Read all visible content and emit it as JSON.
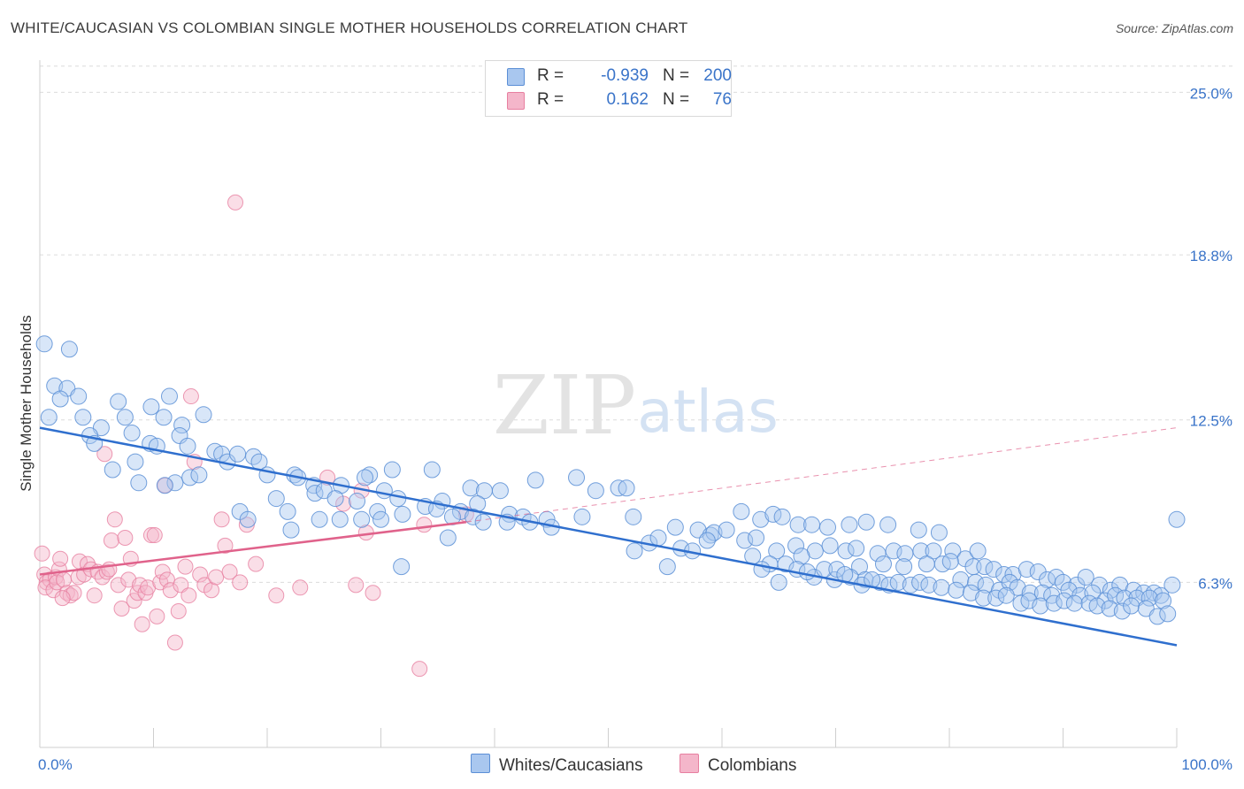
{
  "title": "WHITE/CAUCASIAN VS COLOMBIAN SINGLE MOTHER HOUSEHOLDS CORRELATION CHART",
  "source": "Source: ZipAtlas.com",
  "watermark": {
    "zip": "ZIP",
    "atlas": "atlas"
  },
  "legend_top": {
    "r_label": "R =",
    "n_label": "N =",
    "rows": [
      {
        "name": "Whites/Caucasians",
        "r": "-0.939",
        "n": "200",
        "color": "#a9c7ef"
      },
      {
        "name": "Colombians",
        "r": "0.162",
        "n": "76",
        "color": "#f4b6ca"
      }
    ]
  },
  "legend_bottom": [
    "Whites/Caucasians",
    "Colombians"
  ],
  "colors": {
    "blue_fill": "#a9c7ef",
    "blue_stroke": "#5b8fd6",
    "blue_line": "#2f6fce",
    "pink_fill": "#f4b6ca",
    "pink_stroke": "#e77fa0",
    "pink_line": "#e0628b",
    "accent_text": "#3a74c9"
  },
  "chart_data": {
    "type": "scatter",
    "title": "WHITE/CAUCASIAN VS COLOMBIAN SINGLE MOTHER HOUSEHOLDS CORRELATION CHART",
    "xlabel": "",
    "ylabel": "Single Mother Households",
    "xlim": [
      0,
      100
    ],
    "ylim": [
      0,
      26.5
    ],
    "x_tick_labels": [
      "0.0%",
      "100.0%"
    ],
    "y_ticks": [
      6.3,
      12.5,
      18.8,
      25.0
    ],
    "y_tick_labels": [
      "6.3%",
      "12.5%",
      "18.8%",
      "25.0%"
    ],
    "grid": true,
    "legend": "top-center",
    "series": [
      {
        "name": "Whites/Caucasians",
        "r": -0.939,
        "n": 200,
        "trend": {
          "x": [
            0,
            100
          ],
          "y": [
            12.2,
            3.9
          ]
        },
        "points": [
          [
            0.4,
            15.4
          ],
          [
            2.6,
            15.2
          ],
          [
            1.3,
            13.8
          ],
          [
            2.4,
            13.7
          ],
          [
            1.8,
            13.3
          ],
          [
            3.4,
            13.4
          ],
          [
            0.8,
            12.6
          ],
          [
            3.8,
            12.6
          ],
          [
            6.9,
            13.2
          ],
          [
            7.5,
            12.6
          ],
          [
            5.4,
            12.2
          ],
          [
            8.1,
            12.0
          ],
          [
            9.8,
            13.0
          ],
          [
            10.9,
            12.6
          ],
          [
            11.4,
            13.4
          ],
          [
            12.5,
            12.3
          ],
          [
            14.4,
            12.7
          ],
          [
            12.3,
            11.9
          ],
          [
            4.4,
            11.9
          ],
          [
            4.8,
            11.6
          ],
          [
            9.7,
            11.6
          ],
          [
            10.3,
            11.5
          ],
          [
            13.0,
            11.5
          ],
          [
            15.4,
            11.3
          ],
          [
            16.0,
            11.2
          ],
          [
            16.5,
            10.9
          ],
          [
            17.4,
            11.2
          ],
          [
            18.8,
            11.1
          ],
          [
            19.3,
            10.9
          ],
          [
            8.4,
            10.9
          ],
          [
            6.4,
            10.6
          ],
          [
            11.9,
            10.1
          ],
          [
            13.2,
            10.3
          ],
          [
            8.7,
            10.1
          ],
          [
            11.0,
            10.0
          ],
          [
            14.0,
            10.4
          ],
          [
            20.0,
            10.4
          ],
          [
            22.4,
            10.4
          ],
          [
            22.7,
            10.3
          ],
          [
            24.1,
            10.0
          ],
          [
            24.2,
            9.7
          ],
          [
            25.0,
            9.8
          ],
          [
            26.5,
            10.0
          ],
          [
            29.0,
            10.4
          ],
          [
            31.0,
            10.6
          ],
          [
            30.3,
            9.8
          ],
          [
            28.6,
            10.3
          ],
          [
            34.5,
            10.6
          ],
          [
            37.9,
            9.9
          ],
          [
            39.1,
            9.8
          ],
          [
            40.5,
            9.8
          ],
          [
            43.6,
            10.2
          ],
          [
            47.2,
            10.3
          ],
          [
            48.9,
            9.8
          ],
          [
            50.9,
            9.9
          ],
          [
            51.6,
            9.9
          ],
          [
            31.5,
            9.5
          ],
          [
            33.9,
            9.2
          ],
          [
            35.4,
            9.4
          ],
          [
            38.5,
            9.3
          ],
          [
            34.9,
            9.1
          ],
          [
            37.0,
            9.0
          ],
          [
            36.3,
            8.8
          ],
          [
            38.1,
            8.8
          ],
          [
            41.3,
            8.9
          ],
          [
            42.5,
            8.8
          ],
          [
            43.1,
            8.6
          ],
          [
            39.0,
            8.6
          ],
          [
            41.1,
            8.6
          ],
          [
            44.6,
            8.7
          ],
          [
            45.0,
            8.4
          ],
          [
            47.7,
            8.8
          ],
          [
            52.2,
            8.8
          ],
          [
            55.9,
            8.4
          ],
          [
            57.9,
            8.3
          ],
          [
            59.0,
            8.1
          ],
          [
            59.3,
            8.2
          ],
          [
            60.4,
            8.3
          ],
          [
            61.7,
            9.0
          ],
          [
            63.4,
            8.7
          ],
          [
            64.5,
            8.9
          ],
          [
            65.3,
            8.8
          ],
          [
            66.7,
            8.5
          ],
          [
            67.9,
            8.5
          ],
          [
            69.3,
            8.4
          ],
          [
            71.2,
            8.5
          ],
          [
            72.7,
            8.6
          ],
          [
            74.6,
            8.5
          ],
          [
            77.3,
            8.3
          ],
          [
            79.1,
            8.2
          ],
          [
            17.6,
            9.0
          ],
          [
            18.3,
            8.7
          ],
          [
            20.8,
            9.5
          ],
          [
            22.1,
            8.3
          ],
          [
            26.0,
            9.5
          ],
          [
            27.9,
            9.4
          ],
          [
            29.7,
            9.0
          ],
          [
            30.0,
            8.7
          ],
          [
            31.9,
            8.9
          ],
          [
            28.3,
            8.7
          ],
          [
            26.4,
            8.7
          ],
          [
            21.8,
            9.0
          ],
          [
            24.6,
            8.7
          ],
          [
            35.9,
            8.0
          ],
          [
            52.3,
            7.5
          ],
          [
            53.6,
            7.8
          ],
          [
            54.4,
            8.0
          ],
          [
            56.4,
            7.6
          ],
          [
            57.4,
            7.5
          ],
          [
            58.7,
            7.9
          ],
          [
            62.0,
            7.9
          ],
          [
            63.0,
            8.0
          ],
          [
            64.8,
            7.5
          ],
          [
            66.5,
            7.7
          ],
          [
            68.2,
            7.5
          ],
          [
            69.5,
            7.7
          ],
          [
            70.9,
            7.5
          ],
          [
            71.8,
            7.6
          ],
          [
            73.7,
            7.4
          ],
          [
            75.1,
            7.5
          ],
          [
            76.1,
            7.4
          ],
          [
            77.5,
            7.5
          ],
          [
            78.6,
            7.5
          ],
          [
            80.3,
            7.5
          ],
          [
            81.4,
            7.2
          ],
          [
            82.5,
            7.5
          ],
          [
            55.2,
            6.9
          ],
          [
            62.7,
            7.3
          ],
          [
            67.0,
            7.3
          ],
          [
            72.1,
            6.9
          ],
          [
            74.2,
            7.0
          ],
          [
            76.0,
            6.9
          ],
          [
            78.0,
            7.0
          ],
          [
            79.4,
            7.0
          ],
          [
            80.1,
            7.1
          ],
          [
            82.1,
            6.9
          ],
          [
            83.1,
            6.9
          ],
          [
            83.9,
            6.8
          ],
          [
            84.8,
            6.6
          ],
          [
            85.6,
            6.6
          ],
          [
            86.8,
            6.8
          ],
          [
            87.8,
            6.7
          ],
          [
            88.6,
            6.4
          ],
          [
            89.4,
            6.5
          ],
          [
            90.0,
            6.3
          ],
          [
            91.2,
            6.2
          ],
          [
            92.0,
            6.5
          ],
          [
            93.2,
            6.2
          ],
          [
            94.2,
            6.0
          ],
          [
            95.0,
            6.2
          ],
          [
            96.2,
            6.0
          ],
          [
            97.1,
            5.9
          ],
          [
            98.0,
            5.9
          ],
          [
            98.6,
            5.8
          ],
          [
            99.6,
            6.2
          ],
          [
            100.0,
            8.7
          ],
          [
            81.0,
            6.4
          ],
          [
            82.3,
            6.3
          ],
          [
            83.2,
            6.2
          ],
          [
            84.4,
            6.0
          ],
          [
            85.3,
            6.3
          ],
          [
            86.0,
            6.1
          ],
          [
            87.1,
            5.9
          ],
          [
            88.2,
            5.9
          ],
          [
            89.0,
            5.8
          ],
          [
            90.5,
            6.0
          ],
          [
            91.5,
            5.8
          ],
          [
            92.6,
            5.9
          ],
          [
            93.7,
            5.6
          ],
          [
            94.6,
            5.8
          ],
          [
            95.4,
            5.7
          ],
          [
            96.5,
            5.7
          ],
          [
            97.6,
            5.7
          ],
          [
            98.8,
            5.6
          ],
          [
            68.1,
            6.5
          ],
          [
            69.9,
            6.4
          ],
          [
            71.3,
            6.5
          ],
          [
            72.6,
            6.4
          ],
          [
            73.9,
            6.3
          ],
          [
            74.7,
            6.2
          ],
          [
            75.5,
            6.3
          ],
          [
            76.6,
            6.2
          ],
          [
            77.4,
            6.3
          ],
          [
            78.2,
            6.2
          ],
          [
            79.3,
            6.1
          ],
          [
            80.6,
            6.0
          ],
          [
            81.9,
            5.9
          ],
          [
            83.0,
            5.7
          ],
          [
            84.1,
            5.7
          ],
          [
            85.0,
            5.8
          ],
          [
            86.3,
            5.5
          ],
          [
            87.0,
            5.6
          ],
          [
            88.0,
            5.4
          ],
          [
            89.2,
            5.5
          ],
          [
            90.1,
            5.6
          ],
          [
            91.0,
            5.5
          ],
          [
            92.3,
            5.5
          ],
          [
            93.0,
            5.4
          ],
          [
            94.1,
            5.3
          ],
          [
            95.2,
            5.2
          ],
          [
            96.0,
            5.4
          ],
          [
            97.3,
            5.3
          ],
          [
            98.3,
            5.0
          ],
          [
            99.2,
            5.1
          ],
          [
            64.2,
            7.0
          ],
          [
            65.6,
            7.0
          ],
          [
            66.6,
            6.8
          ],
          [
            67.5,
            6.7
          ],
          [
            31.8,
            6.9
          ],
          [
            69.0,
            6.8
          ],
          [
            70.1,
            6.8
          ],
          [
            70.8,
            6.6
          ],
          [
            72.3,
            6.2
          ],
          [
            73.2,
            6.4
          ],
          [
            65.0,
            6.3
          ],
          [
            63.5,
            6.8
          ]
        ]
      },
      {
        "name": "Colombians",
        "r": 0.162,
        "n": 76,
        "trend": {
          "x": [
            0,
            37.5
          ],
          "y": [
            6.6,
            8.6
          ]
        },
        "trend_dashed": {
          "x": [
            37.5,
            100
          ],
          "y": [
            8.6,
            12.2
          ]
        },
        "points": [
          [
            0.2,
            7.4
          ],
          [
            0.4,
            6.6
          ],
          [
            0.6,
            6.3
          ],
          [
            0.9,
            6.4
          ],
          [
            0.5,
            6.1
          ],
          [
            1.2,
            6.0
          ],
          [
            1.4,
            6.5
          ],
          [
            1.7,
            6.8
          ],
          [
            1.5,
            6.3
          ],
          [
            2.1,
            6.4
          ],
          [
            2.4,
            5.9
          ],
          [
            2.7,
            5.8
          ],
          [
            3.0,
            5.9
          ],
          [
            2.0,
            5.7
          ],
          [
            1.8,
            7.2
          ],
          [
            3.4,
            6.5
          ],
          [
            3.5,
            7.1
          ],
          [
            3.9,
            6.6
          ],
          [
            4.2,
            7.0
          ],
          [
            4.5,
            6.8
          ],
          [
            4.8,
            5.8
          ],
          [
            5.1,
            6.7
          ],
          [
            5.5,
            6.5
          ],
          [
            5.9,
            6.7
          ],
          [
            6.1,
            6.8
          ],
          [
            6.3,
            7.9
          ],
          [
            6.6,
            8.7
          ],
          [
            6.9,
            6.2
          ],
          [
            7.2,
            5.3
          ],
          [
            7.5,
            8.0
          ],
          [
            7.8,
            6.4
          ],
          [
            8.0,
            7.2
          ],
          [
            8.3,
            5.6
          ],
          [
            8.6,
            5.9
          ],
          [
            8.8,
            6.2
          ],
          [
            9.0,
            4.7
          ],
          [
            9.3,
            5.9
          ],
          [
            9.5,
            6.1
          ],
          [
            9.8,
            8.1
          ],
          [
            10.1,
            8.1
          ],
          [
            10.3,
            5.0
          ],
          [
            10.6,
            6.3
          ],
          [
            10.8,
            6.7
          ],
          [
            11.2,
            6.4
          ],
          [
            11.5,
            6.0
          ],
          [
            11.9,
            4.0
          ],
          [
            12.2,
            5.2
          ],
          [
            12.4,
            6.2
          ],
          [
            12.8,
            6.9
          ],
          [
            13.1,
            5.8
          ],
          [
            13.3,
            13.4
          ],
          [
            13.6,
            10.9
          ],
          [
            14.1,
            6.6
          ],
          [
            14.5,
            6.2
          ],
          [
            15.1,
            6.0
          ],
          [
            15.5,
            6.5
          ],
          [
            16.0,
            8.7
          ],
          [
            16.3,
            7.7
          ],
          [
            16.7,
            6.7
          ],
          [
            17.2,
            20.8
          ],
          [
            17.6,
            6.3
          ],
          [
            18.2,
            8.5
          ],
          [
            19.0,
            7.0
          ],
          [
            20.8,
            5.8
          ],
          [
            22.9,
            6.1
          ],
          [
            25.3,
            10.3
          ],
          [
            26.7,
            9.3
          ],
          [
            27.8,
            6.2
          ],
          [
            28.3,
            9.8
          ],
          [
            28.7,
            8.2
          ],
          [
            29.3,
            5.9
          ],
          [
            33.4,
            3.0
          ],
          [
            33.8,
            8.5
          ],
          [
            37.5,
            8.9
          ],
          [
            11.0,
            10.0
          ],
          [
            5.7,
            11.2
          ]
        ]
      }
    ]
  }
}
